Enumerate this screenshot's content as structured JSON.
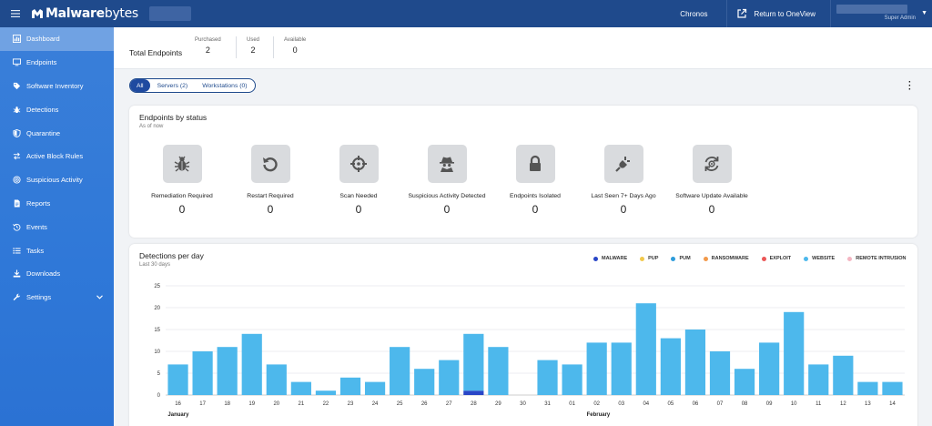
{
  "app": {
    "brand_bold": "Malware",
    "brand_light": "bytes"
  },
  "topbar": {
    "tenant_label": "Chronos",
    "return_label": "Return to OneView",
    "user_role": "Super Admin"
  },
  "sidebar": {
    "items": [
      {
        "label": "Dashboard",
        "icon": "chart-icon",
        "active": true
      },
      {
        "label": "Endpoints",
        "icon": "monitor-icon"
      },
      {
        "label": "Software Inventory",
        "icon": "tag-icon"
      },
      {
        "label": "Detections",
        "icon": "bug-icon"
      },
      {
        "label": "Quarantine",
        "icon": "shield-icon"
      },
      {
        "label": "Active Block Rules",
        "icon": "arrows-icon"
      },
      {
        "label": "Suspicious Activity",
        "icon": "radar-icon"
      },
      {
        "label": "Reports",
        "icon": "document-icon"
      },
      {
        "label": "Events",
        "icon": "history-icon"
      },
      {
        "label": "Tasks",
        "icon": "list-icon"
      },
      {
        "label": "Downloads",
        "icon": "download-icon"
      },
      {
        "label": "Settings",
        "icon": "wrench-icon"
      }
    ]
  },
  "summary": {
    "total_label": "Total Endpoints",
    "purchased_label": "Purchased",
    "purchased_value": "2",
    "used_label": "Used",
    "used_value": "2",
    "available_label": "Available",
    "available_value": "0"
  },
  "filters": {
    "all": "All",
    "servers": "Servers (2)",
    "workstations": "Workstations (0)"
  },
  "status_card": {
    "title": "Endpoints by status",
    "subtitle": "As of now",
    "tiles": [
      {
        "label": "Remediation Required",
        "value": "0",
        "icon": "bug-icon"
      },
      {
        "label": "Restart Required",
        "value": "0",
        "icon": "restart-icon"
      },
      {
        "label": "Scan Needed",
        "value": "0",
        "icon": "crosshair-icon"
      },
      {
        "label": "Suspicious Activity Detected",
        "value": "0",
        "icon": "spy-icon"
      },
      {
        "label": "Endpoints Isolated",
        "value": "0",
        "icon": "lock-icon"
      },
      {
        "label": "Last Seen 7+ Days Ago",
        "value": "0",
        "icon": "plug-icon"
      },
      {
        "label": "Software Update Available",
        "value": "0",
        "icon": "update-icon"
      }
    ]
  },
  "detections_card": {
    "title": "Detections per day",
    "subtitle": "Last 30 days"
  },
  "colors": {
    "topbar": "#1f4a8c",
    "bar": "#4db8ec",
    "malware": "#2946c7"
  },
  "chart_data": {
    "type": "bar",
    "stacked": true,
    "categories": [
      "16",
      "17",
      "18",
      "19",
      "20",
      "21",
      "22",
      "23",
      "24",
      "25",
      "26",
      "27",
      "28",
      "29",
      "30",
      "31",
      "01",
      "02",
      "03",
      "04",
      "05",
      "06",
      "07",
      "08",
      "09",
      "10",
      "11",
      "12",
      "13",
      "14"
    ],
    "month_labels": [
      {
        "label": "January",
        "category": "16"
      },
      {
        "label": "February",
        "category": "02"
      }
    ],
    "series": [
      {
        "name": "MALWARE",
        "color": "#2946c7",
        "values": [
          0,
          0,
          0,
          0,
          0,
          0,
          0,
          0,
          0,
          0,
          0,
          0,
          1,
          0,
          0,
          0,
          0,
          0,
          0,
          0,
          0,
          0,
          0,
          0,
          0,
          0,
          0,
          0,
          0,
          0
        ]
      },
      {
        "name": "PUP",
        "color": "#f2c94c",
        "values": [
          0,
          0,
          0,
          0,
          0,
          0,
          0,
          0,
          0,
          0,
          0,
          0,
          0,
          0,
          0,
          0,
          0,
          0,
          0,
          0,
          0,
          0,
          0,
          0,
          0,
          0,
          0,
          0,
          0,
          0
        ]
      },
      {
        "name": "PUM",
        "color": "#2d9cdb",
        "values": [
          0,
          0,
          0,
          0,
          0,
          0,
          0,
          0,
          0,
          0,
          0,
          0,
          0,
          0,
          0,
          0,
          0,
          0,
          0,
          0,
          0,
          0,
          0,
          0,
          0,
          0,
          0,
          0,
          0,
          0
        ]
      },
      {
        "name": "RANSOMWARE",
        "color": "#f2994a",
        "values": [
          0,
          0,
          0,
          0,
          0,
          0,
          0,
          0,
          0,
          0,
          0,
          0,
          0,
          0,
          0,
          0,
          0,
          0,
          0,
          0,
          0,
          0,
          0,
          0,
          0,
          0,
          0,
          0,
          0,
          0
        ]
      },
      {
        "name": "EXPLOIT",
        "color": "#eb5757",
        "values": [
          0,
          0,
          0,
          0,
          0,
          0,
          0,
          0,
          0,
          0,
          0,
          0,
          0,
          0,
          0,
          0,
          0,
          0,
          0,
          0,
          0,
          0,
          0,
          0,
          0,
          0,
          0,
          0,
          0,
          0
        ]
      },
      {
        "name": "WEBSITE",
        "color": "#4db8ec",
        "values": [
          7,
          10,
          11,
          14,
          7,
          3,
          1,
          4,
          3,
          11,
          6,
          8,
          13,
          11,
          0,
          8,
          7,
          12,
          12,
          21,
          13,
          15,
          10,
          6,
          12,
          19,
          7,
          9,
          3,
          3
        ]
      },
      {
        "name": "REMOTE INTRUSION",
        "color": "#f4b6c2",
        "values": [
          0,
          0,
          0,
          0,
          0,
          0,
          0,
          0,
          0,
          0,
          0,
          0,
          0,
          0,
          0,
          0,
          0,
          0,
          0,
          0,
          0,
          0,
          0,
          0,
          0,
          0,
          0,
          0,
          0,
          0
        ]
      }
    ],
    "y_ticks": [
      0,
      5,
      10,
      15,
      20,
      25
    ],
    "ylim": [
      0,
      25
    ],
    "grid": true,
    "legend_position": "top-right"
  }
}
